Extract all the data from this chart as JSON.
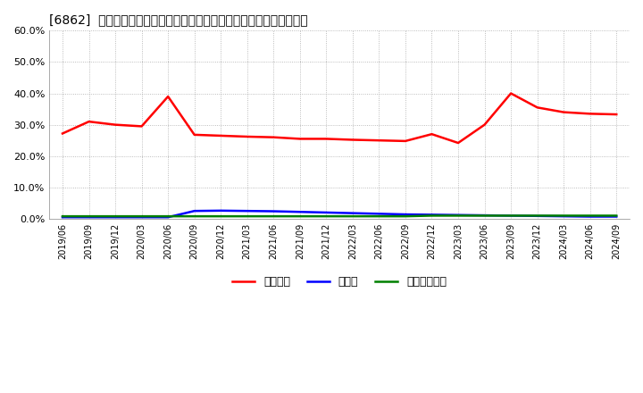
{
  "title": "[6862]  自己資本、のれん、繰延税金資産の総資産に対する比率の推移",
  "ylim": [
    0.0,
    0.6
  ],
  "yticks": [
    0.0,
    0.1,
    0.2,
    0.3,
    0.4,
    0.5,
    0.6
  ],
  "background_color": "#ffffff",
  "plot_bg_color": "#ffffff",
  "grid_color": "#aaaaaa",
  "legend_labels": [
    "自己資本",
    "のれん",
    "繰延税金資産"
  ],
  "legend_colors": [
    "#ff0000",
    "#0000ff",
    "#008000"
  ],
  "x_labels": [
    "2019/06",
    "2019/09",
    "2019/12",
    "2020/03",
    "2020/06",
    "2020/09",
    "2020/12",
    "2021/03",
    "2021/06",
    "2021/09",
    "2021/12",
    "2022/03",
    "2022/06",
    "2022/09",
    "2022/12",
    "2023/03",
    "2023/06",
    "2023/09",
    "2023/12",
    "2024/03",
    "2024/06",
    "2024/09"
  ],
  "series_jikoshihon": [
    0.272,
    0.31,
    0.3,
    0.295,
    0.39,
    0.268,
    0.265,
    0.262,
    0.26,
    0.255,
    0.255,
    0.252,
    0.25,
    0.248,
    0.27,
    0.242,
    0.3,
    0.4,
    0.355,
    0.34,
    0.335,
    0.333
  ],
  "series_noren": [
    0.005,
    0.005,
    0.005,
    0.005,
    0.005,
    0.025,
    0.026,
    0.025,
    0.024,
    0.022,
    0.02,
    0.018,
    0.016,
    0.014,
    0.013,
    0.012,
    0.011,
    0.01,
    0.009,
    0.008,
    0.007,
    0.007
  ],
  "series_kurinobe": [
    0.008,
    0.008,
    0.008,
    0.008,
    0.008,
    0.008,
    0.008,
    0.008,
    0.008,
    0.008,
    0.008,
    0.008,
    0.008,
    0.008,
    0.01,
    0.01,
    0.01,
    0.01,
    0.01,
    0.01,
    0.01,
    0.01
  ]
}
